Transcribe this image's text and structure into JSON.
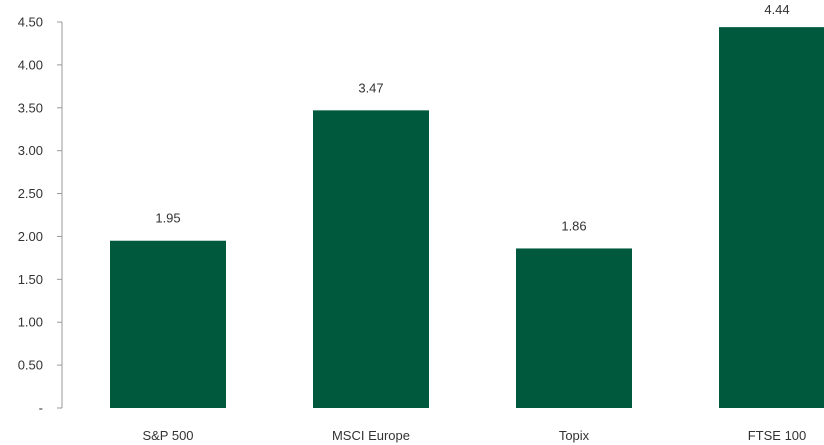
{
  "chart_data": {
    "type": "bar",
    "title": "",
    "xlabel": "",
    "ylabel": "",
    "categories": [
      "S&P 500",
      "MSCI Europe",
      "Topix",
      "FTSE 100"
    ],
    "values": [
      1.95,
      3.47,
      1.86,
      4.44
    ],
    "data_labels": [
      "1.95",
      "3.47",
      "1.86",
      "4.44"
    ],
    "ylim": [
      0,
      4.5
    ],
    "yticks": [
      0,
      0.5,
      1.0,
      1.5,
      2.0,
      2.5,
      3.0,
      3.5,
      4.0,
      4.5
    ],
    "ytick_labels": [
      "-",
      "0.50",
      "1.00",
      "1.50",
      "2.00",
      "2.50",
      "3.00",
      "3.50",
      "4.00",
      "4.50"
    ],
    "grid": false,
    "legend": "none",
    "colors": {
      "bar": "#00583D",
      "axis": "#999999",
      "text": "#333333"
    }
  }
}
